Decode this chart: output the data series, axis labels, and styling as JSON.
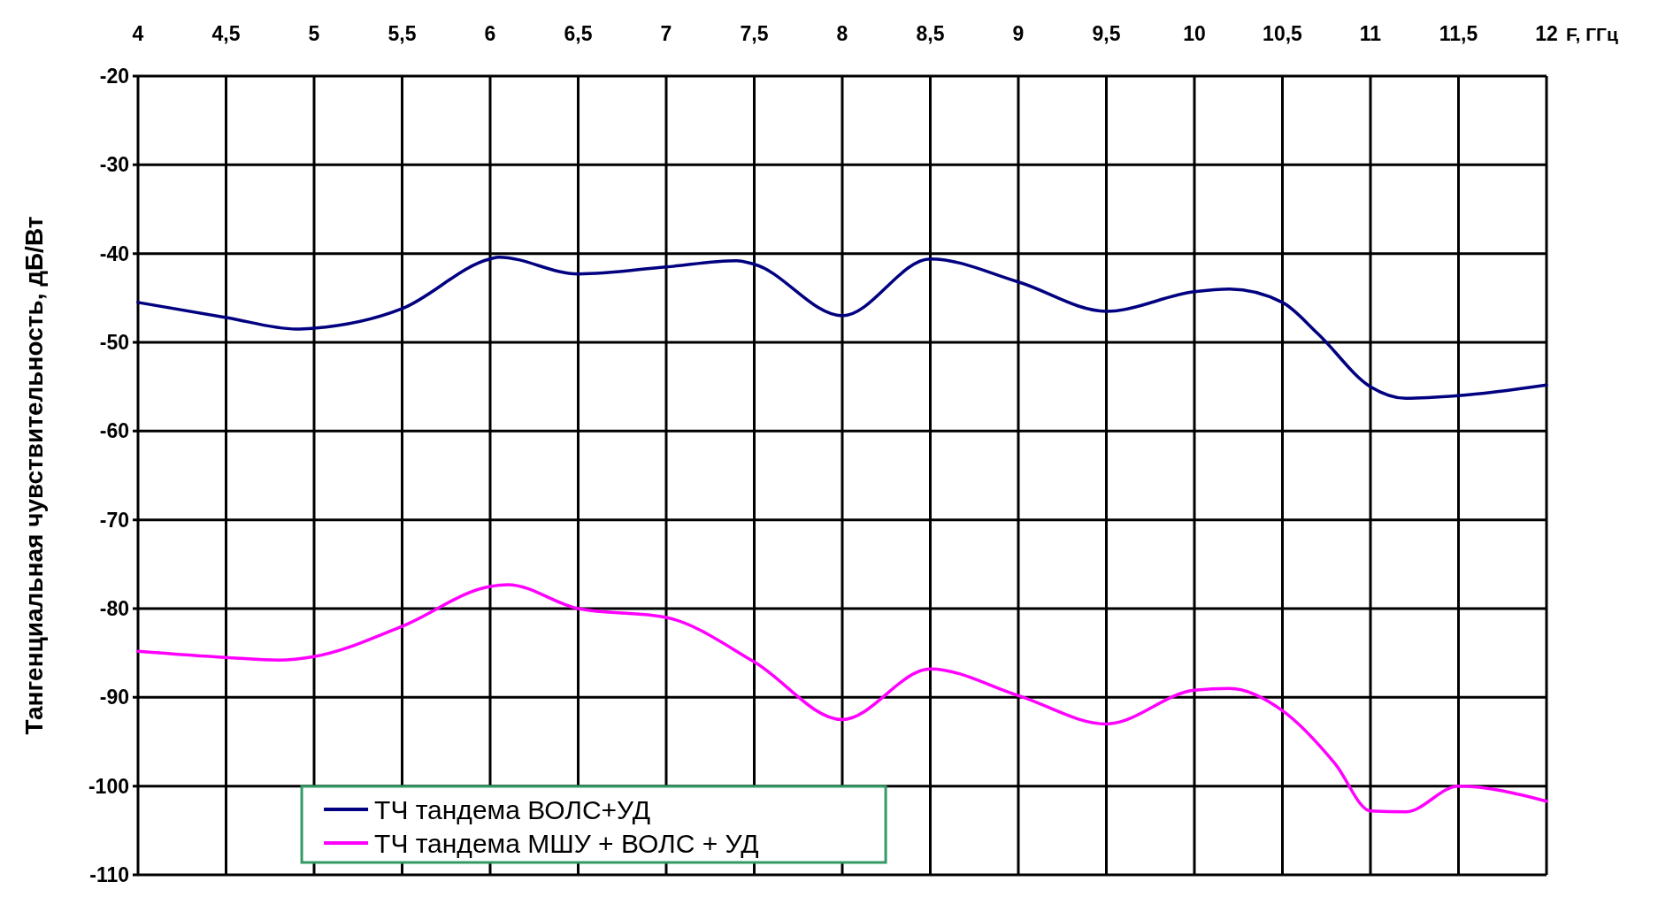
{
  "chart_data": {
    "type": "line",
    "xlabel": "F, ГГц",
    "ylabel": "Тангенциальная чувствительность, дБ/Вт",
    "xlim": [
      4,
      12
    ],
    "xticks": [
      {
        "value": 4,
        "label": "4"
      },
      {
        "value": 4.5,
        "label": "4,5"
      },
      {
        "value": 5,
        "label": "5"
      },
      {
        "value": 5.5,
        "label": "5,5"
      },
      {
        "value": 6,
        "label": "6"
      },
      {
        "value": 6.5,
        "label": "6,5"
      },
      {
        "value": 7,
        "label": "7"
      },
      {
        "value": 7.5,
        "label": "7,5"
      },
      {
        "value": 8,
        "label": "8"
      },
      {
        "value": 8.5,
        "label": "8,5"
      },
      {
        "value": 9,
        "label": "9"
      },
      {
        "value": 9.5,
        "label": "9,5"
      },
      {
        "value": 10,
        "label": "10"
      },
      {
        "value": 10.5,
        "label": "10,5"
      },
      {
        "value": 11,
        "label": "11"
      },
      {
        "value": 11.5,
        "label": "11,5"
      },
      {
        "value": 12,
        "label": "12"
      }
    ],
    "ylim": [
      -110,
      -20
    ],
    "yticks": [
      -110,
      -100,
      -90,
      -80,
      -70,
      -60,
      -50,
      -40,
      -30,
      -20
    ],
    "grid": true,
    "legend": "bottom",
    "marker": "none",
    "line_style": "solid",
    "series": [
      {
        "name": "ТЧ тандема ВОЛС+УД",
        "color": "#000080",
        "x": [
          4,
          4.5,
          4.9,
          5,
          5.5,
          6,
          6.05,
          6.5,
          7,
          7.4,
          7.5,
          8,
          8.5,
          9,
          9.5,
          10,
          10.2,
          10.5,
          10.7,
          11,
          11.2,
          11.5,
          12
        ],
        "values": [
          -45.5,
          -47.2,
          -48.5,
          -48.4,
          -46.2,
          -40.6,
          -40.4,
          -42.3,
          -41.5,
          -40.8,
          -41.2,
          -47,
          -40.6,
          -43.2,
          -46.5,
          -44.3,
          -44,
          -45.5,
          -49,
          -55,
          -56.3,
          -56,
          -54.8
        ]
      },
      {
        "name": "ТЧ тандема МШУ + ВОЛС + УД",
        "color": "#ff00ff",
        "x": [
          4,
          4.5,
          4.8,
          5,
          5.5,
          6,
          6.1,
          6.5,
          7,
          7.5,
          8,
          8.5,
          9,
          9.5,
          10,
          10.2,
          10.5,
          10.8,
          11,
          11.2,
          11.5,
          12
        ],
        "values": [
          -84.8,
          -85.5,
          -85.8,
          -85.4,
          -82,
          -77.5,
          -77.3,
          -80,
          -81,
          -86,
          -92.5,
          -86.8,
          -89.8,
          -93,
          -89.2,
          -89,
          -91.5,
          -97.5,
          -102.8,
          -102.9,
          -100,
          -101.7
        ]
      }
    ]
  }
}
